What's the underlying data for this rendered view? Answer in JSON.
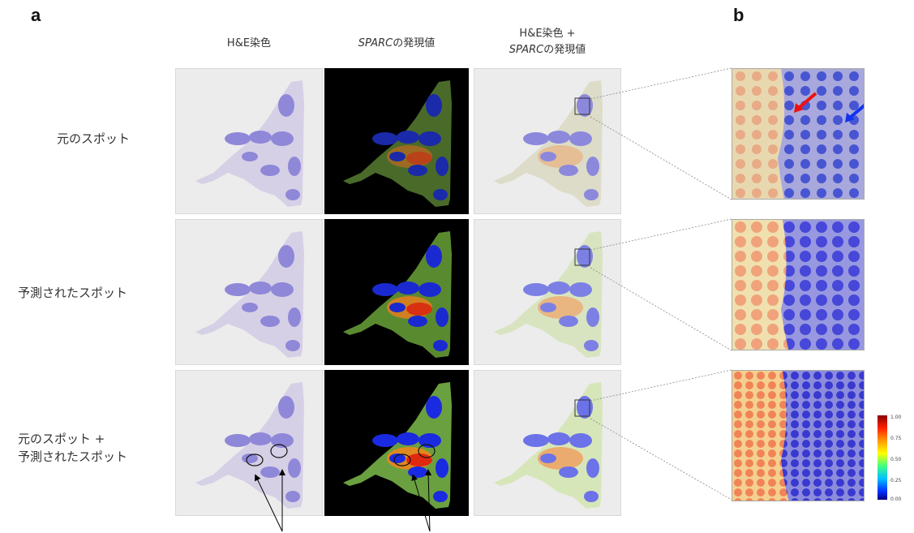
{
  "panels": {
    "a": "a",
    "b": "b"
  },
  "columns": {
    "he": "H&E染色",
    "sparc_gene": "SPARC",
    "sparc_suffix": "の発現値",
    "he_plus": "H&E染色 +",
    "sparc2_gene": "SPARC",
    "sparc2_suffix": "の発現値"
  },
  "rows": {
    "original": "元のスポット",
    "predicted": "予測されたスポット",
    "combined_1": "元のスポット +",
    "combined_2": "予測されたスポット"
  },
  "colorbar": {
    "ticks": [
      "1.00",
      "0.75",
      "0.50",
      "0.25",
      "0.00"
    ],
    "gradient": [
      "#8b0000",
      "#ff2000",
      "#ff9900",
      "#ffff00",
      "#40ff80",
      "#00c0ff",
      "#0030ff",
      "#000080"
    ]
  },
  "colors": {
    "tissue": "#c5bde0",
    "lobule": "#8f88d8",
    "high": "#e03010",
    "low": "#2030e0",
    "arrow_red": "#ee1111",
    "arrow_blue": "#1133ee"
  }
}
